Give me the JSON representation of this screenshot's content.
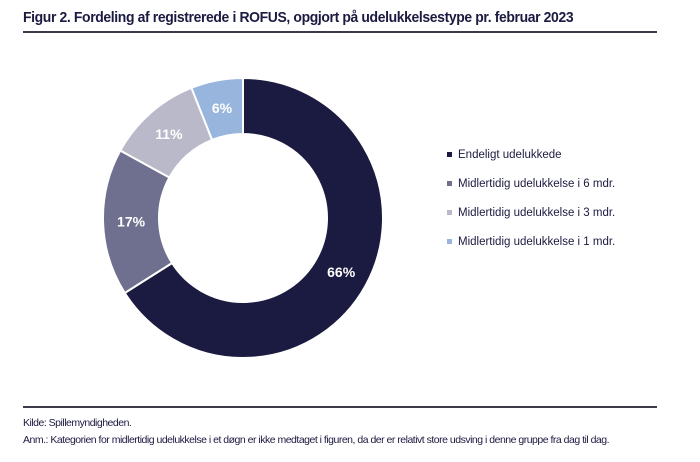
{
  "title": "Figur 2. Fordeling af registrerede i ROFUS, opgjort på udelukkelsestype pr. februar 2023",
  "chart_data": {
    "type": "pie",
    "variant": "donut",
    "title": "Figur 2. Fordeling af registrerede i ROFUS, opgjort på udelukkelsestype pr. februar 2023",
    "categories": [
      "Endeligt udelukkede",
      "Midlertidig udelukkelse i 6 mdr.",
      "Midlertidig udelukkelse i 3 mdr.",
      "Midlertidig udelukkelse i 1 mdr."
    ],
    "values": [
      66,
      17,
      11,
      6
    ],
    "labels": [
      "66%",
      "17%",
      "11%",
      "6%"
    ],
    "colors": [
      "#1b1a40",
      "#6f6f8f",
      "#b9b9c9",
      "#98b5dd"
    ],
    "label_colors": [
      "#ffffff",
      "#ffffff",
      "#ffffff",
      "#ffffff"
    ],
    "legend_position": "right"
  },
  "footer": {
    "source": "Kilde: Spillemyndigheden.",
    "note": "Anm.: Kategorien for midlertidig udelukkelse i et døgn er ikke medtaget i figuren, da der er relativt store udsving i denne gruppe fra dag til dag."
  }
}
